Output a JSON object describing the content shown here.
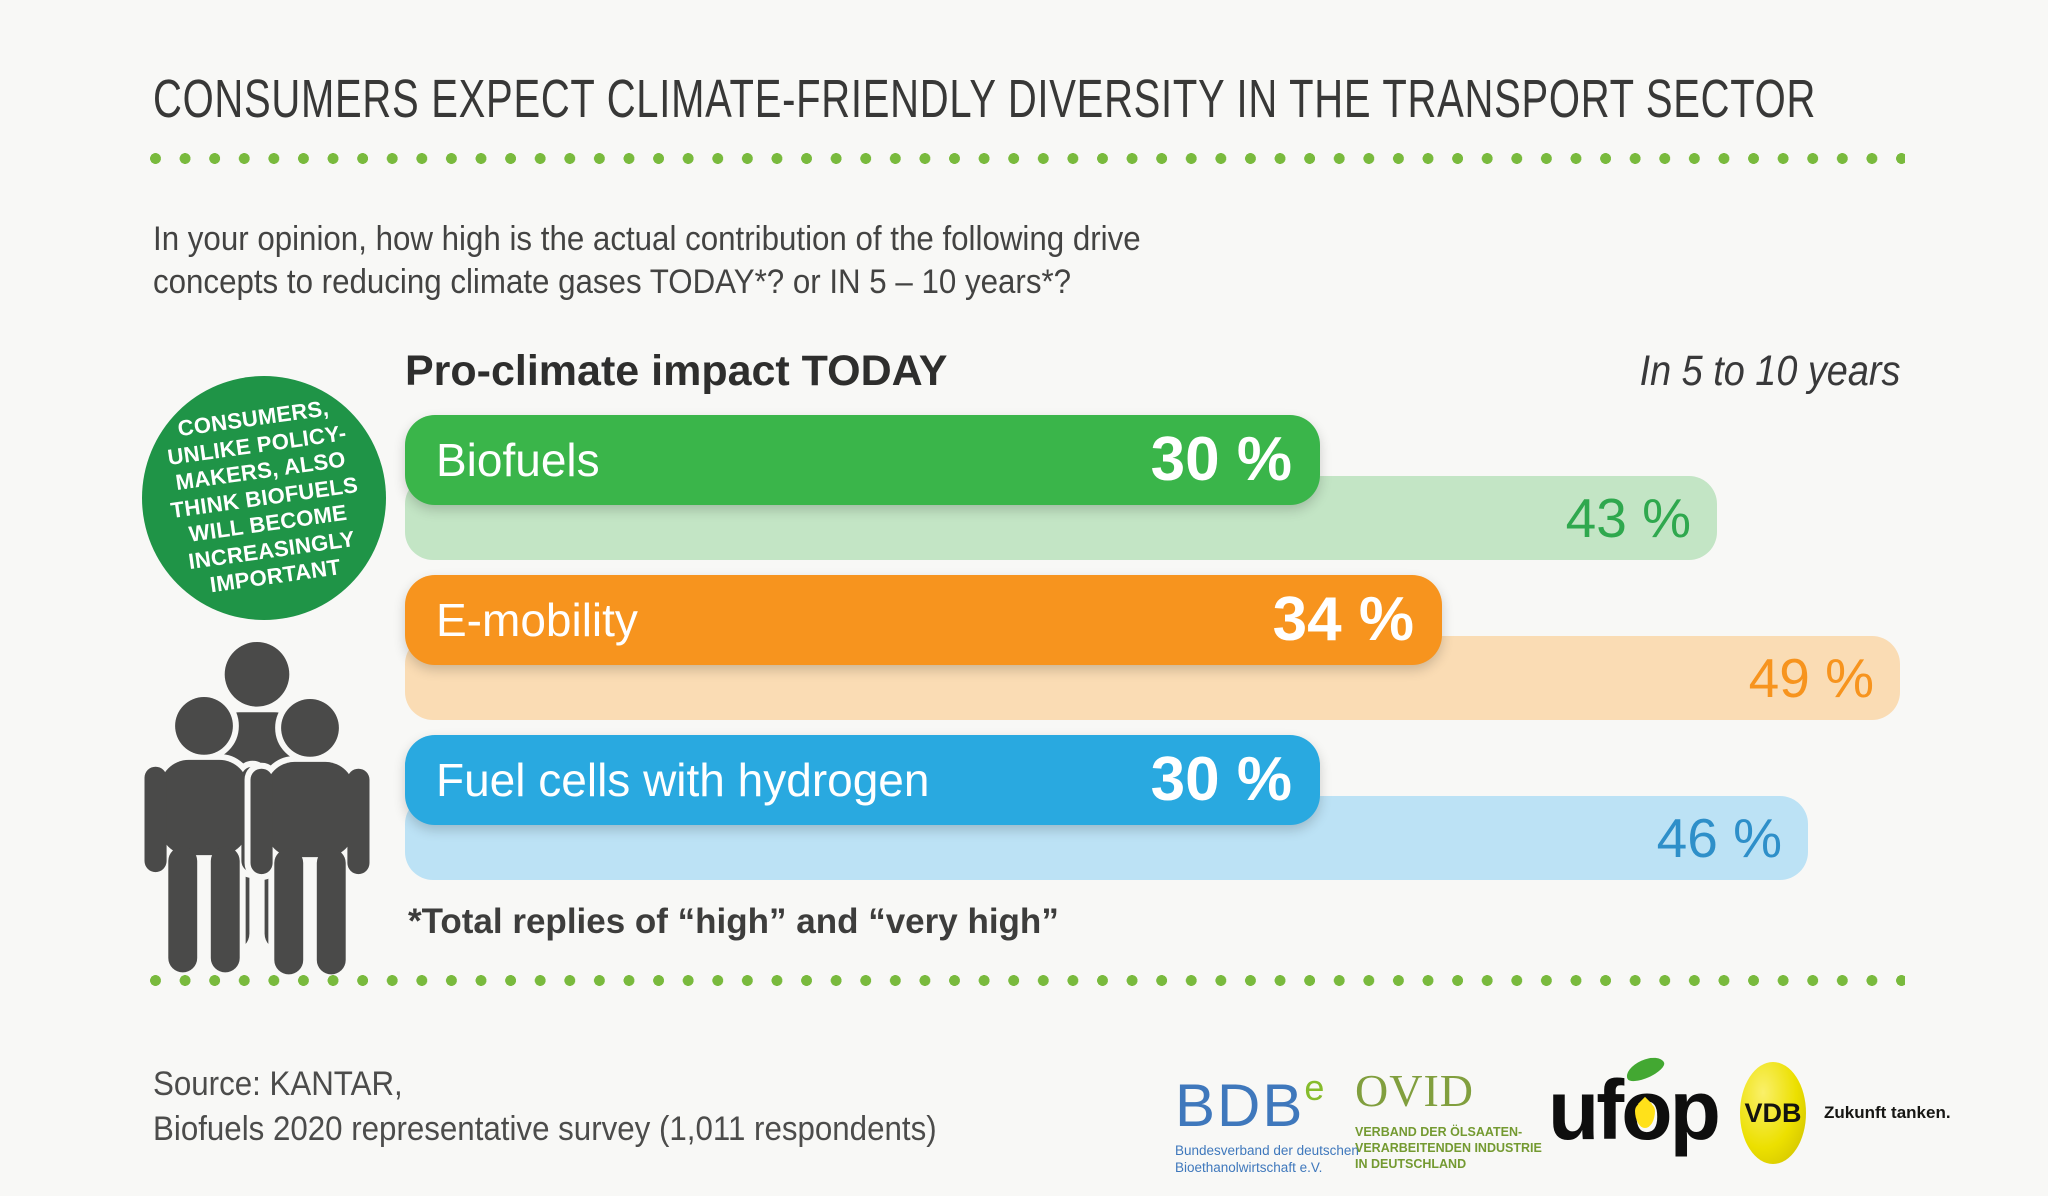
{
  "title": "CONSUMERS EXPECT CLIMATE-FRIENDLY DIVERSITY IN THE TRANSPORT SECTOR",
  "question": {
    "line1": "In your opinion, how high is the actual contribution of the following drive",
    "line2": "concepts to reducing climate gases TODAY*? or IN 5 – 10 years*?"
  },
  "chart_data": {
    "type": "bar",
    "title": "Pro-climate impact TODAY",
    "secondary_title": "In 5 to 10 years",
    "categories": [
      "Biofuels",
      "E-mobility",
      "Fuel cells with hydrogen"
    ],
    "series": [
      {
        "name": "Pro-climate impact TODAY",
        "values": [
          30,
          34,
          30
        ],
        "colors": [
          "#3ab54a",
          "#f7941e",
          "#29a9e0"
        ],
        "label_color": "#ffffff"
      },
      {
        "name": "In 5 to 10 years",
        "values": [
          43,
          49,
          46
        ],
        "colors": [
          "#c3e5c5",
          "#fadcb4",
          "#bce2f5"
        ],
        "value_colors": [
          "#2fa84e",
          "#f7941e",
          "#2e8fc9"
        ]
      }
    ],
    "unit": "%",
    "xlim": [
      0,
      49
    ],
    "footnote": "*Total replies of “high” and “very high”"
  },
  "badge": {
    "lines": [
      "CONSUMERS,",
      "UNLIKE POLICY-",
      "MAKERS, ALSO",
      "THINK BIOFUELS",
      "WILL BECOME",
      "INCREASINGLY",
      "IMPORTANT"
    ],
    "background": "#1f9447"
  },
  "source": {
    "line1": "Source: KANTAR,",
    "line2": "Biofuels 2020 representative survey (1,011 respondents)"
  },
  "logos": {
    "bdbe": {
      "text": "BDB",
      "sup": "e",
      "subline1": "Bundesverband der deutschen",
      "subline2": "Bioethanolwirtschaft e.V.",
      "color": "#3f78bc",
      "sup_color": "#86bc2c"
    },
    "ovid": {
      "text": "OVID",
      "subline1": "VERBAND DER ÖLSAATEN-",
      "subline2": "VERARBEITENDEN INDUSTRIE",
      "subline3": "IN DEUTSCHLAND",
      "color": "#819f3e"
    },
    "ufop": {
      "pre": "uf",
      "o": "o",
      "post": "p",
      "text": "ufop"
    },
    "vdb": {
      "text": "VDB",
      "tagline": "Zukunft tanken.",
      "color": "#ece000"
    }
  },
  "colors": {
    "background": "#f8f8f6",
    "dotted_line": "#79ba3d",
    "title_text": "#383837",
    "people_icon": "#4a4a49"
  }
}
